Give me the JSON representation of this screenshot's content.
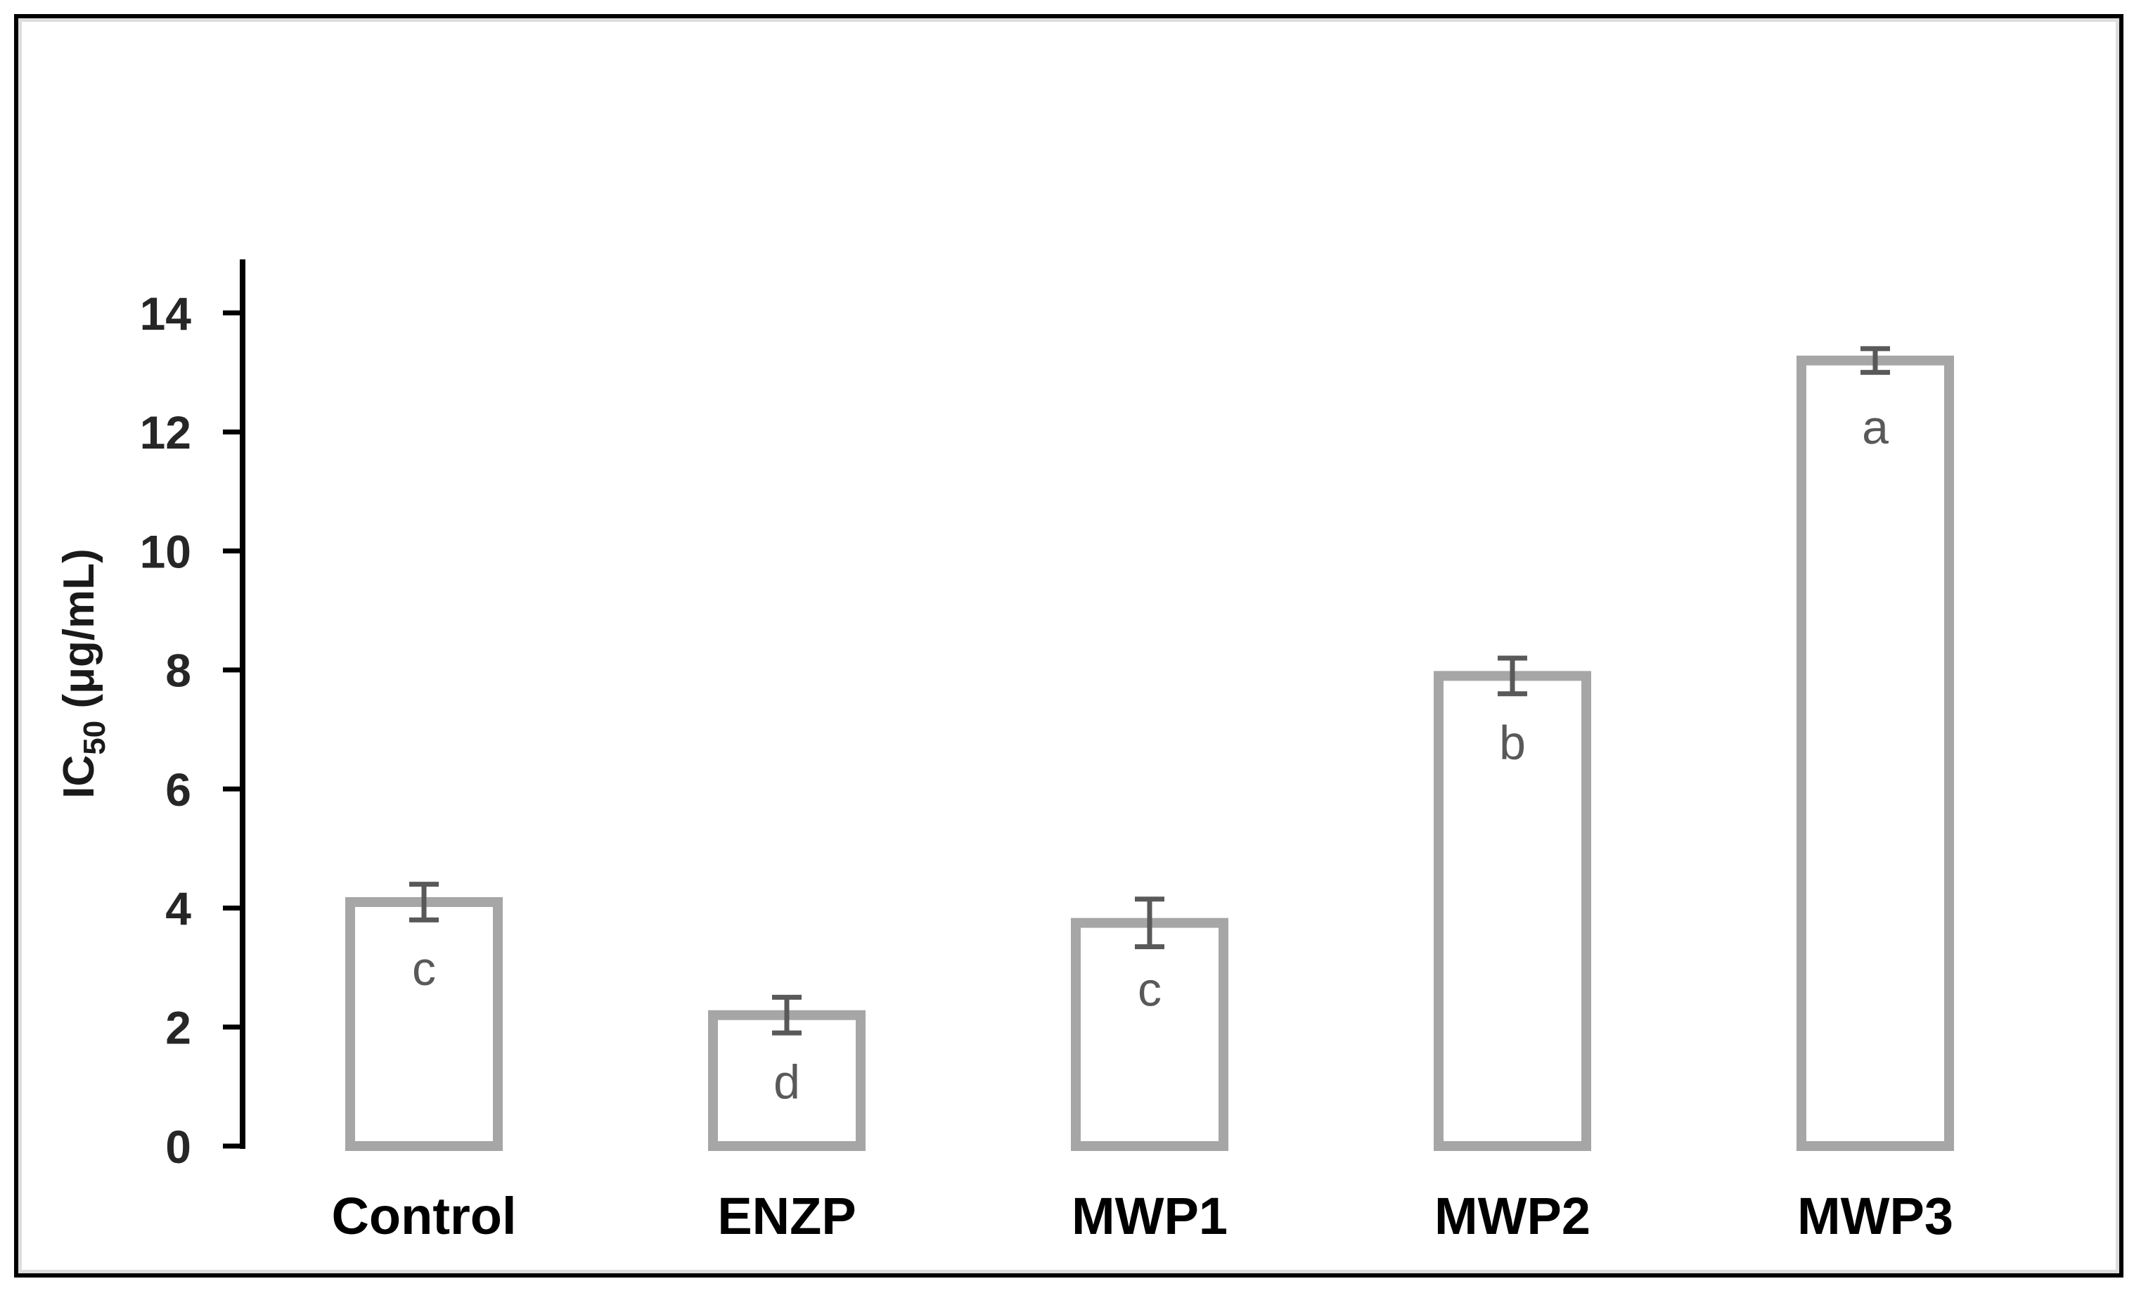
{
  "figure": {
    "background_color": "#ffffff",
    "border_color": "#000000",
    "border_shadow_color": "#dddddd"
  },
  "chart_data": {
    "type": "bar",
    "title": "",
    "xlabel": "",
    "ylabel": "IC50 (μg/mL)",
    "ylabel_parts": {
      "prefix": "IC",
      "subscript": "50",
      "suffix": " (μg/mL)"
    },
    "categories": [
      "Control",
      "ENZP",
      "MWP1",
      "MWP2",
      "MWP3"
    ],
    "values": [
      4.1,
      2.2,
      3.75,
      7.9,
      13.2
    ],
    "error_bars": [
      0.3,
      0.3,
      0.4,
      0.3,
      0.2
    ],
    "significance_letters": [
      "c",
      "d",
      "c",
      "b",
      "a"
    ],
    "ylim": [
      0,
      14.9
    ],
    "yticks": [
      0,
      2,
      4,
      6,
      8,
      10,
      12,
      14
    ],
    "grid": false,
    "legend_position": "none",
    "bar_fill_color": "#ffffff",
    "bar_outline_color": "#a6a6a6",
    "error_bar_color": "#595959",
    "letter_color": "#595959",
    "axis_color": "#000000",
    "tick_label_color": "#262626",
    "category_label_color": "#000000"
  }
}
